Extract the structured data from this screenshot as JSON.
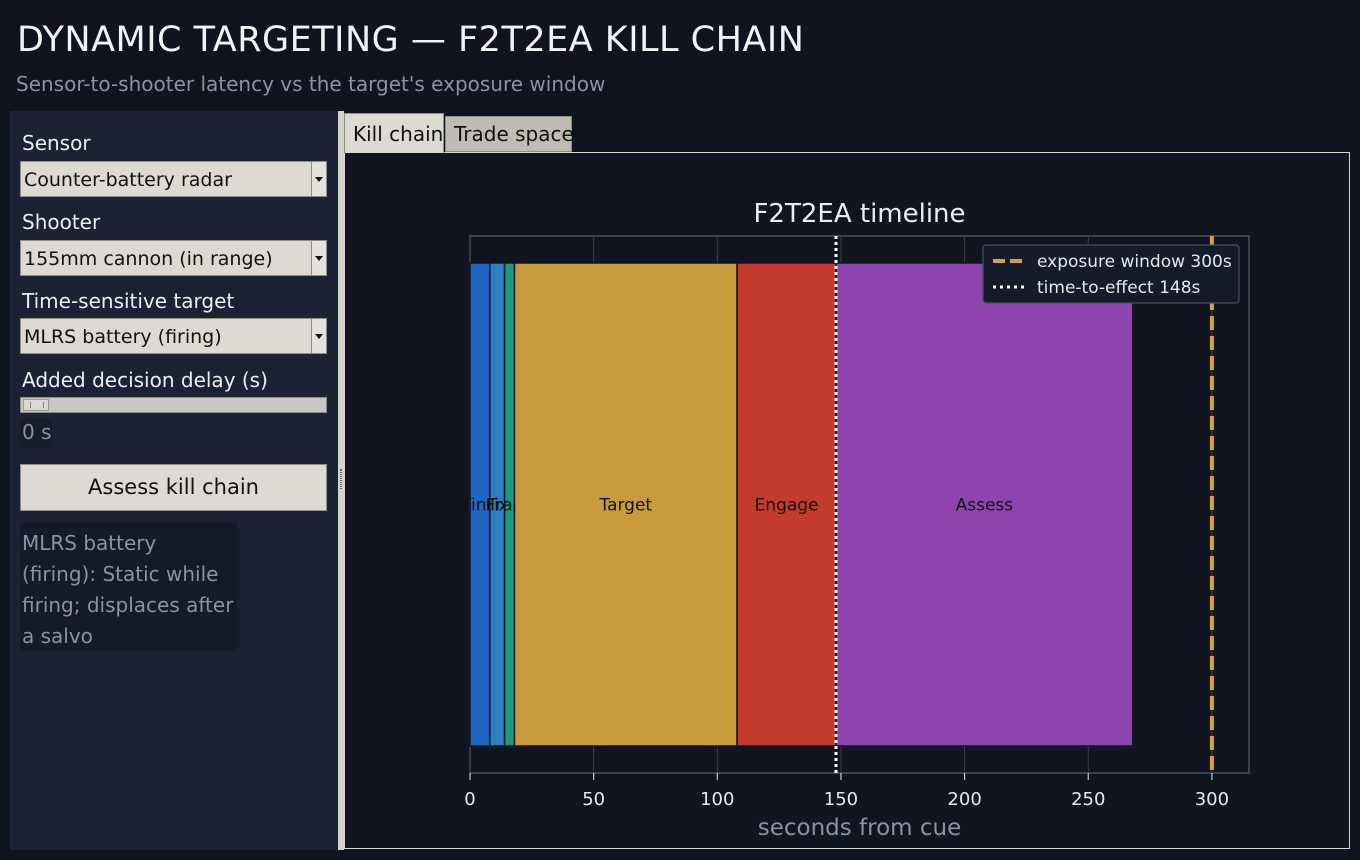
{
  "header": {
    "title": "DYNAMIC TARGETING — F2T2EA KILL CHAIN",
    "subtitle": "Sensor-to-shooter latency vs the target's exposure window"
  },
  "sidebar": {
    "sensor_label": "Sensor",
    "sensor_value": "Counter-battery radar",
    "shooter_label": "Shooter",
    "shooter_value": "155mm cannon (in range)",
    "target_label": "Time-sensitive target",
    "target_value": "MLRS battery (firing)",
    "delay_label": "Added decision delay (s)",
    "delay_value": 0,
    "delay_display": "0 s",
    "assess_button": "Assess kill chain",
    "info_text": "MLRS battery (firing): Static while firing; displaces after a salvo"
  },
  "tabs": {
    "kill_chain": "Kill chain",
    "trade_space": "Trade space",
    "active": "kill_chain"
  },
  "chart_data": {
    "type": "bar",
    "orientation": "horizontal-stacked",
    "title": "F2T2EA timeline",
    "xlabel": "seconds from cue",
    "ylabel": "",
    "xlim": [
      0,
      315
    ],
    "xticks": [
      0,
      50,
      100,
      150,
      200,
      250,
      300
    ],
    "grid": true,
    "legend_position": "top-right",
    "segments": [
      {
        "label": "Find",
        "start": 0,
        "duration": 8,
        "color": "#1f66c4"
      },
      {
        "label": "Fix",
        "start": 8,
        "duration": 6,
        "color": "#2e7fc0"
      },
      {
        "label": "Track",
        "start": 14,
        "duration": 4,
        "color": "#1a9a82"
      },
      {
        "label": "Target",
        "start": 18,
        "duration": 90,
        "color": "#c79b3c"
      },
      {
        "label": "Engage",
        "start": 108,
        "duration": 40,
        "color": "#c23b2c"
      },
      {
        "label": "Assess",
        "start": 148,
        "duration": 120,
        "color": "#8e44ad"
      }
    ],
    "reference_lines": [
      {
        "label": "exposure window 300s",
        "x": 300,
        "style": "dashed",
        "color": "#d4a43a"
      },
      {
        "label": "time-to-effect 148s",
        "x": 148,
        "style": "dotted",
        "color": "#ffffff"
      }
    ]
  }
}
